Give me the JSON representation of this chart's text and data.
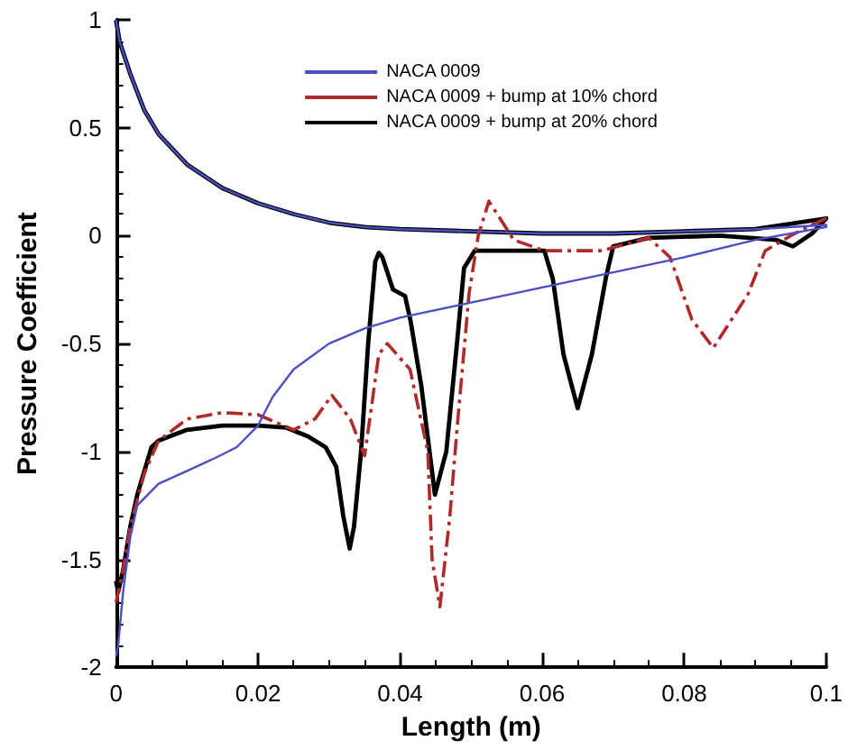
{
  "chart_data": {
    "type": "line",
    "xlabel": "Length (m)",
    "ylabel": "Pressure Coefficient",
    "xlim": [
      0,
      0.1
    ],
    "xticks": [
      0,
      0.02,
      0.04,
      0.06,
      0.08,
      0.1
    ],
    "ylim": [
      -2,
      1
    ],
    "yticks": [
      -2,
      -1.5,
      -1,
      -0.5,
      0,
      0.5,
      1
    ],
    "grid": false,
    "legend": "top right",
    "marker": "none",
    "series": [
      {
        "name": "NACA 0009",
        "color": "#4a4fc4",
        "line_style": "solid",
        "x": [
          0,
          0.0005,
          0.002,
          0.004,
          0.006,
          0.01,
          0.015,
          0.02,
          0.025,
          0.03,
          0.035,
          0.04,
          0.05,
          0.06,
          0.07,
          0.08,
          0.09,
          0.1,
          0.1,
          0.09,
          0.08,
          0.07,
          0.06,
          0.05,
          0.04,
          0.035,
          0.03,
          0.025,
          0.022,
          0.02,
          0.017,
          0.014,
          0.01,
          0.006,
          0.003,
          0.002,
          0.001,
          0.0003,
          0
        ],
        "values": [
          1,
          0.9,
          0.75,
          0.58,
          0.47,
          0.33,
          0.22,
          0.15,
          0.1,
          0.06,
          0.04,
          0.03,
          0.02,
          0.01,
          0.01,
          0.02,
          0.03,
          0.05,
          0.04,
          -0.02,
          -0.1,
          -0.17,
          -0.24,
          -0.31,
          -0.38,
          -0.43,
          -0.5,
          -0.62,
          -0.75,
          -0.88,
          -0.98,
          -1.03,
          -1.09,
          -1.15,
          -1.25,
          -1.4,
          -1.65,
          -1.9,
          -1.95
        ]
      },
      {
        "name": "NACA 0009 + bump at 10% chord",
        "color": "#b02a2a",
        "line_style": "dashed",
        "x": [
          0.1,
          0.098,
          0.095,
          0.0914,
          0.089,
          0.0841,
          0.0811,
          0.078,
          0.075,
          0.0684,
          0.0603,
          0.056,
          0.0525,
          0.051,
          0.0497,
          0.048,
          0.047,
          0.0456,
          0.0445,
          0.0439,
          0.0414,
          0.0382,
          0.037,
          0.035,
          0.033,
          0.0304,
          0.028,
          0.025,
          0.02,
          0.015,
          0.01,
          0.006,
          0.004,
          0.002,
          0.001,
          0
        ],
        "values": [
          0.08,
          0.05,
          0.0,
          -0.07,
          -0.27,
          -0.52,
          -0.39,
          -0.1,
          -0.01,
          -0.07,
          -0.07,
          -0.02,
          0.16,
          0.0,
          -0.27,
          -0.9,
          -1.3,
          -1.72,
          -1.5,
          -1.0,
          -0.62,
          -0.5,
          -0.55,
          -1.02,
          -0.85,
          -0.74,
          -0.85,
          -0.9,
          -0.83,
          -0.82,
          -0.85,
          -0.95,
          -1.1,
          -1.35,
          -1.55,
          -1.7
        ]
      },
      {
        "name": "NACA 0009 + bump at 20% chord",
        "color": "#000000",
        "line_style": "solid",
        "x": [
          0,
          0.0005,
          0.002,
          0.004,
          0.006,
          0.01,
          0.015,
          0.02,
          0.025,
          0.03,
          0.035,
          0.04,
          0.05,
          0.06,
          0.07,
          0.08,
          0.09,
          0.1,
          0.098,
          0.0953,
          0.093,
          0.085,
          0.075,
          0.07,
          0.069,
          0.067,
          0.065,
          0.063,
          0.0615,
          0.0603,
          0.055,
          0.0505,
          0.049,
          0.048,
          0.0465,
          0.0449,
          0.043,
          0.0415,
          0.0407,
          0.039,
          0.0375,
          0.037,
          0.0365,
          0.0355,
          0.0345,
          0.0335,
          0.0329,
          0.032,
          0.031,
          0.0295,
          0.027,
          0.024,
          0.02,
          0.015,
          0.01,
          0.006,
          0.005,
          0.003,
          0.002,
          0.001,
          0.0003,
          0
        ],
        "values": [
          1,
          0.9,
          0.75,
          0.58,
          0.47,
          0.33,
          0.22,
          0.15,
          0.1,
          0.06,
          0.04,
          0.03,
          0.02,
          0.01,
          0.01,
          0.02,
          0.03,
          0.08,
          0.01,
          -0.05,
          -0.02,
          0.0,
          -0.01,
          -0.05,
          -0.19,
          -0.55,
          -0.8,
          -0.55,
          -0.2,
          -0.07,
          -0.07,
          -0.07,
          -0.15,
          -0.5,
          -1.0,
          -1.2,
          -0.7,
          -0.4,
          -0.28,
          -0.25,
          -0.1,
          -0.08,
          -0.12,
          -0.5,
          -1.0,
          -1.35,
          -1.45,
          -1.3,
          -1.07,
          -0.98,
          -0.93,
          -0.89,
          -0.88,
          -0.88,
          -0.9,
          -0.95,
          -0.98,
          -1.2,
          -1.35,
          -1.55,
          -1.65,
          -1.6
        ]
      }
    ]
  }
}
